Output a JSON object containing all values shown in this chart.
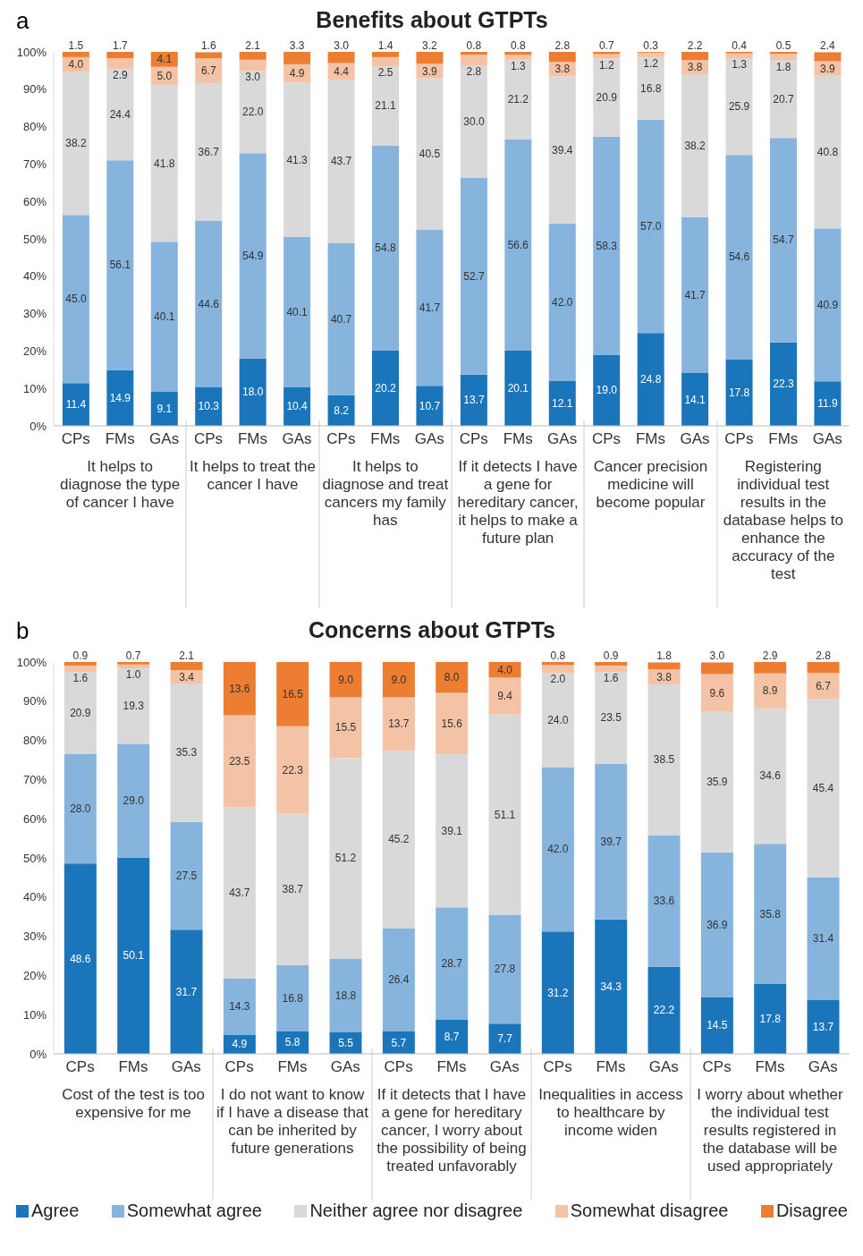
{
  "chart_data": [
    {
      "type": "bar",
      "stacked": true,
      "title": "Benefits about GTPTs",
      "annotations": [
        "a",
        "It helps to diagnose the type of cancer I have",
        "It helps to treat the cancer I have",
        "It helps to diagnose and treat cancers my family has",
        "If it detects I have a gene for hereditary cancer, it helps to make a future plan",
        "Cancer precision medicine will become popular",
        "Registering individual test results in the database helps to enhance the accuracy of the test"
      ],
      "categories": [
        "CPs",
        "FMs",
        "GAs",
        "CPs",
        "FMs",
        "GAs",
        "CPs",
        "FMs",
        "GAs",
        "CPs",
        "FMs",
        "GAs",
        "CPs",
        "FMs",
        "GAs",
        "CPs",
        "FMs",
        "GAs"
      ],
      "ylim": [
        0,
        100
      ],
      "yticks": [
        {
          "value": 0,
          "label": "0%"
        },
        {
          "value": 10,
          "label": "10%"
        },
        {
          "value": 20,
          "label": "20%"
        },
        {
          "value": 30,
          "label": "30%"
        },
        {
          "value": 40,
          "label": "40%"
        },
        {
          "value": 50,
          "label": "50%"
        },
        {
          "value": 60,
          "label": "60%"
        },
        {
          "value": 70,
          "label": "70%"
        },
        {
          "value": 80,
          "label": "80%"
        },
        {
          "value": 90,
          "label": "90%"
        },
        {
          "value": 100,
          "label": "100%"
        }
      ],
      "series": [
        {
          "color": "#1b75bb",
          "values": [
            11.4,
            14.9,
            9.1,
            10.3,
            18.0,
            10.4,
            8.2,
            20.2,
            10.7,
            13.7,
            20.1,
            12.1,
            19.0,
            24.8,
            14.1,
            17.8,
            22.3,
            11.9
          ],
          "value_labels": [
            "11.4",
            "14.9",
            "9.1",
            "10.3",
            "18.0",
            "10.4",
            "8.2",
            "20.2",
            "10.7",
            "13.7",
            "20.1",
            "12.1",
            "19.0",
            "24.8",
            "14.1",
            "17.8",
            "22.3",
            "11.9"
          ]
        },
        {
          "color": "#86b4dd",
          "values": [
            45.0,
            56.1,
            40.1,
            44.6,
            54.9,
            40.1,
            40.7,
            54.8,
            41.7,
            52.7,
            56.6,
            42.0,
            58.3,
            57.0,
            41.7,
            54.6,
            54.7,
            40.9
          ],
          "value_labels": [
            "45.0",
            "56.1",
            "40.1",
            "44.6",
            "54.9",
            "40.1",
            "40.7",
            "54.8",
            "41.7",
            "52.7",
            "56.6",
            "42.0",
            "58.3",
            "57.0",
            "41.7",
            "54.6",
            "54.7",
            "40.9"
          ]
        },
        {
          "color": "#d9d9d9",
          "values": [
            38.2,
            24.4,
            41.8,
            36.7,
            22.0,
            41.3,
            43.7,
            21.1,
            40.5,
            30.0,
            21.2,
            39.4,
            20.9,
            16.8,
            38.2,
            25.9,
            20.7,
            40.8
          ],
          "value_labels": [
            "38.2",
            "24.4",
            "41.8",
            "36.7",
            "22.0",
            "41.3",
            "43.7",
            "21.1",
            "40.5",
            "30.0",
            "21.2",
            "39.4",
            "20.9",
            "16.8",
            "38.2",
            "25.9",
            "20.7",
            "40.8"
          ]
        },
        {
          "color": "#f4c3a5",
          "values": [
            4.0,
            2.9,
            5.0,
            6.7,
            3.0,
            4.9,
            4.4,
            2.5,
            3.9,
            2.8,
            1.3,
            3.8,
            1.2,
            1.2,
            3.8,
            1.3,
            1.8,
            3.9
          ],
          "value_labels": [
            "4.0",
            "2.9",
            "5.0",
            "6.7",
            "3.0",
            "4.9",
            "4.4",
            "2.5",
            "3.9",
            "2.8",
            "1.3",
            "3.8",
            "1.2",
            "1.2",
            "3.8",
            "1.3",
            "1.8",
            "3.9"
          ]
        },
        {
          "color": "#ed7d31",
          "values": [
            1.5,
            1.7,
            4.1,
            1.6,
            2.1,
            3.3,
            3.0,
            1.4,
            3.2,
            0.8,
            0.8,
            2.8,
            0.7,
            0.3,
            2.2,
            0.4,
            0.5,
            2.4
          ],
          "value_labels": [
            "1.5",
            "1.7",
            "4.1",
            "1.6",
            "2.1",
            "3.3",
            "3.0",
            "1.4",
            "3.2",
            "0.8",
            "0.8",
            "2.8",
            "0.7",
            "0.3",
            "2.2",
            "0.4",
            "0.5",
            "2.4"
          ]
        }
      ]
    },
    {
      "type": "bar",
      "stacked": true,
      "title": "Concerns about GTPTs",
      "legend": "bottom",
      "annotations": [
        "b",
        "Cost of the test is too expensive for me",
        "I do not want to know if I have a disease that can be inherited by future generations",
        "If it detects that I have a gene for hereditary cancer, I worry about the possibility of being treated unfavorably",
        "Inequalities in access to healthcare by income widen",
        "I worry about whether the individual test results registered in the database will be used appropriately"
      ],
      "categories": [
        "CPs",
        "FMs",
        "GAs",
        "CPs",
        "FMs",
        "GAs",
        "CPs",
        "FMs",
        "GAs",
        "CPs",
        "FMs",
        "GAs",
        "CPs",
        "FMs",
        "GAs"
      ],
      "ylim": [
        0,
        100
      ],
      "yticks": [
        {
          "value": 0,
          "label": "0%"
        },
        {
          "value": 10,
          "label": "10%"
        },
        {
          "value": 20,
          "label": "20%"
        },
        {
          "value": 30,
          "label": "30%"
        },
        {
          "value": 40,
          "label": "40%"
        },
        {
          "value": 50,
          "label": "50%"
        },
        {
          "value": 60,
          "label": "60%"
        },
        {
          "value": 70,
          "label": "70%"
        },
        {
          "value": 80,
          "label": "80%"
        },
        {
          "value": 90,
          "label": "90%"
        },
        {
          "value": 100,
          "label": "100%"
        }
      ],
      "series": [
        {
          "name": "Agree",
          "color": "#1b75bb",
          "values": [
            48.6,
            50.1,
            31.7,
            4.9,
            5.8,
            5.5,
            5.7,
            8.7,
            7.7,
            31.2,
            34.3,
            22.2,
            14.5,
            17.8,
            13.7
          ],
          "value_labels": [
            "48.6",
            "50.1",
            "31.7",
            "4.9",
            "5.8",
            "5.5",
            "5.7",
            "8.7",
            "7.7",
            "31.2",
            "34.3",
            "22.2",
            "14.5",
            "17.8",
            "13.7"
          ]
        },
        {
          "name": "Somewhat agree",
          "color": "#86b4dd",
          "values": [
            28.0,
            29.0,
            27.5,
            14.3,
            16.8,
            18.8,
            26.4,
            28.7,
            27.8,
            42.0,
            39.7,
            33.6,
            36.9,
            35.8,
            31.4
          ],
          "value_labels": [
            "28.0",
            "29.0",
            "27.5",
            "14.3",
            "16.8",
            "18.8",
            "26.4",
            "28.7",
            "27.8",
            "42.0",
            "39.7",
            "33.6",
            "36.9",
            "35.8",
            "31.4"
          ]
        },
        {
          "name": "Neither agree nor disagree",
          "color": "#d9d9d9",
          "values": [
            20.9,
            19.3,
            35.3,
            43.7,
            38.7,
            51.2,
            45.2,
            39.1,
            51.1,
            24.0,
            23.5,
            38.5,
            35.9,
            34.6,
            45.4
          ],
          "value_labels": [
            "20.9",
            "19.3",
            "35.3",
            "43.7",
            "38.7",
            "51.2",
            "45.2",
            "39.1",
            "51.1",
            "24.0",
            "23.5",
            "38.5",
            "35.9",
            "34.6",
            "45.4"
          ]
        },
        {
          "name": "Somewhat disagree",
          "color": "#f4c3a5",
          "values": [
            1.6,
            1.0,
            3.4,
            23.5,
            22.3,
            15.5,
            13.7,
            15.6,
            9.4,
            2.0,
            1.6,
            3.8,
            9.6,
            8.9,
            6.7
          ],
          "value_labels": [
            "1.6",
            "1.0",
            "3.4",
            "23.5",
            "22.3",
            "15.5",
            "13.7",
            "15.6",
            "9.4",
            "2.0",
            "1.6",
            "3.8",
            "9.6",
            "8.9",
            "6.7"
          ]
        },
        {
          "name": "Disagree",
          "color": "#ed7d31",
          "values": [
            0.9,
            0.7,
            2.1,
            13.6,
            16.5,
            9.0,
            9.0,
            8.0,
            4.0,
            0.8,
            0.9,
            1.8,
            3.0,
            2.9,
            2.8
          ],
          "value_labels": [
            "0.9",
            "0.7",
            "2.1",
            "13.6",
            "16.5",
            "9.0",
            "9.0",
            "8.0",
            "4.0",
            "0.8",
            "0.9",
            "1.8",
            "3.0",
            "2.9",
            "2.8"
          ]
        }
      ]
    }
  ]
}
